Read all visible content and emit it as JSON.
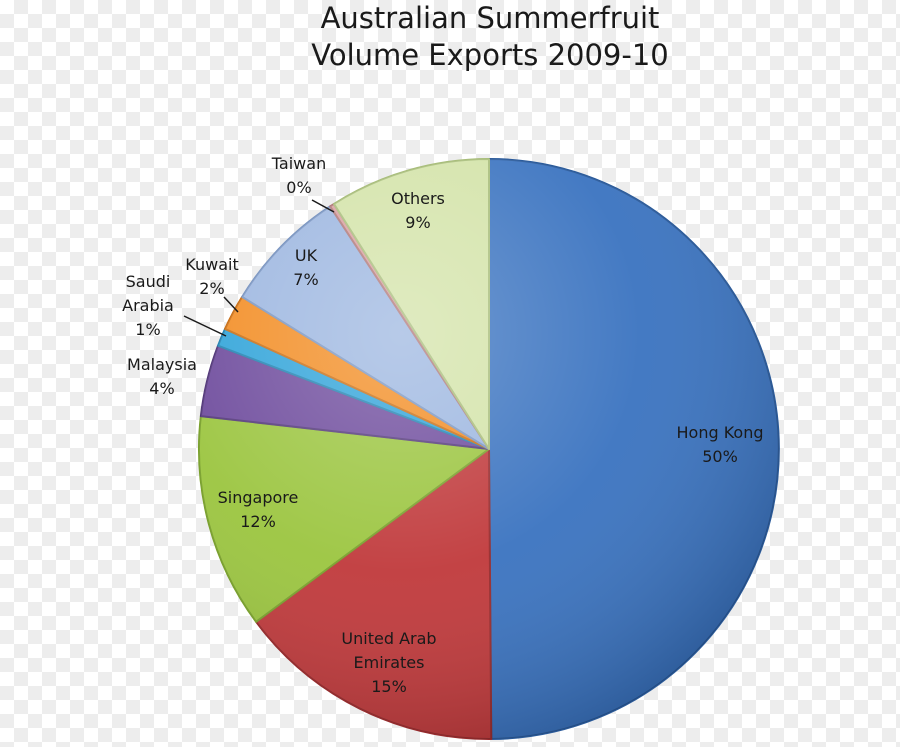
{
  "chart_data": {
    "type": "pie",
    "title_lines": [
      "Australian Summerfruit",
      "Volume Exports 2009-10"
    ],
    "slices": [
      {
        "label_lines": [
          "Hong Kong",
          "50%"
        ],
        "name": "Hong Kong",
        "value": 50,
        "color": "#3a73c0",
        "edge": "#2a5a9a"
      },
      {
        "label_lines": [
          "United Arab",
          "Emirates",
          "15%"
        ],
        "name": "United Arab Emirates",
        "value": 15,
        "color": "#c0393b",
        "edge": "#962a2c"
      },
      {
        "label_lines": [
          "Singapore",
          "12%"
        ],
        "name": "Singapore",
        "value": 12,
        "color": "#9bc53f",
        "edge": "#79a02c"
      },
      {
        "label_lines": [
          "Malaysia",
          "4%"
        ],
        "name": "Malaysia",
        "value": 4,
        "color": "#6d4a9c",
        "edge": "#53387a"
      },
      {
        "label_lines": [
          "Saudi",
          "Arabia",
          "1%"
        ],
        "name": "Saudi Arabia",
        "value": 1,
        "color": "#2fa3d9",
        "edge": "#2283b2"
      },
      {
        "label_lines": [
          "Kuwait",
          "2%"
        ],
        "name": "Kuwait",
        "value": 2,
        "color": "#f28c22",
        "edge": "#c96e14"
      },
      {
        "label_lines": [
          "UK",
          "7%"
        ],
        "name": "UK",
        "value": 7,
        "color": "#9cb6e0",
        "edge": "#7b96c2"
      },
      {
        "label_lines": [
          "Taiwan",
          "0%"
        ],
        "name": "Taiwan",
        "value": 0.25,
        "color": "#d9a0a0",
        "edge": "#b07878"
      },
      {
        "label_lines": [
          "Others",
          "9%"
        ],
        "name": "Others",
        "value": 9,
        "color": "#d3e3a8",
        "edge": "#a8bd7a"
      }
    ],
    "legend": "none"
  }
}
